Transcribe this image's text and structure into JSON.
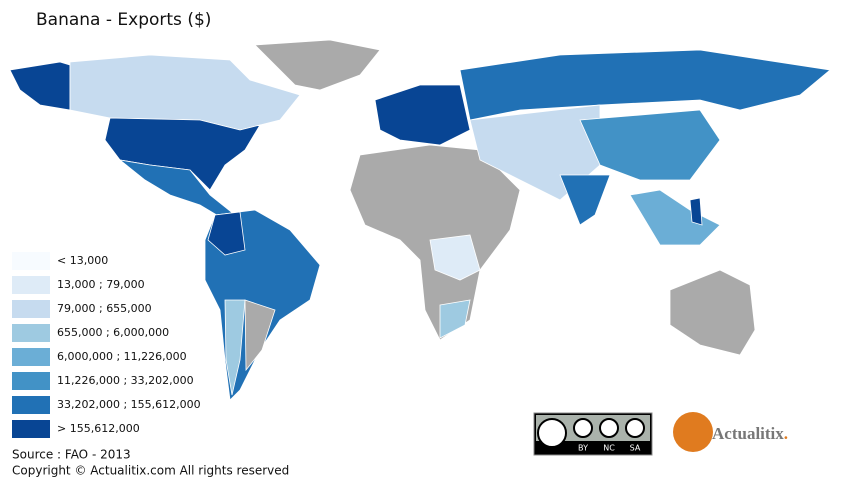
{
  "title": "Banana - Exports ($)",
  "legend": {
    "items": [
      {
        "label": "< 13,000",
        "color": "#f7fbff"
      },
      {
        "label": "13,000 ; 79,000",
        "color": "#deebf7"
      },
      {
        "label": "79,000 ; 655,000",
        "color": "#c6dbef"
      },
      {
        "label": "655,000 ; 6,000,000",
        "color": "#9ecae1"
      },
      {
        "label": "6,000,000 ; 11,226,000",
        "color": "#6baed6"
      },
      {
        "label": "11,226,000 ; 33,202,000",
        "color": "#4292c6"
      },
      {
        "label": "33,202,000 ; 155,612,000",
        "color": "#2171b5"
      },
      {
        "label": "> 155,612,000",
        "color": "#084594"
      }
    ]
  },
  "source": "Source : FAO - 2013",
  "copyright": "Copyright © Actualitix.com All rights reserved",
  "license": {
    "labels": [
      "BY",
      "NC",
      "SA"
    ]
  },
  "logo": {
    "text": "Actualitix",
    "suffix": "."
  }
}
